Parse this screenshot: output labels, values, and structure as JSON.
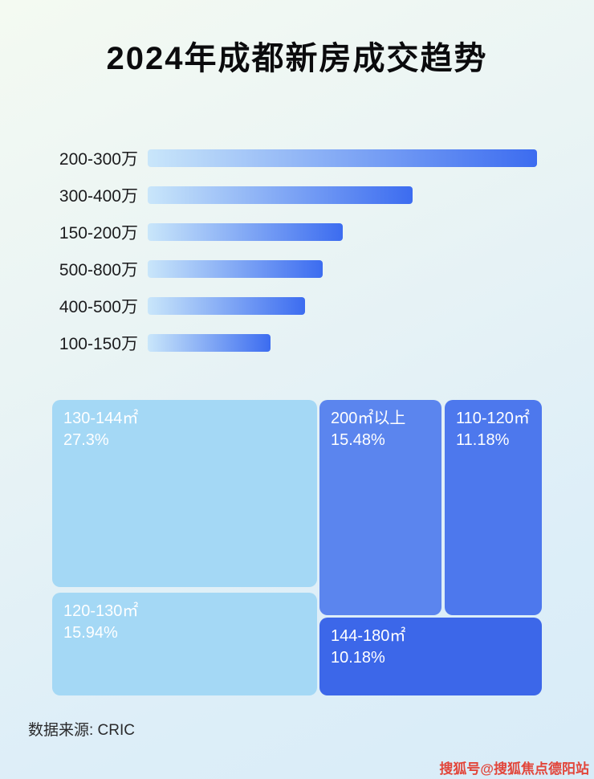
{
  "title": "2024年成都新房成交趋势",
  "source": "数据来源: CRIC",
  "watermark": "搜狐号@搜狐焦点德阳站",
  "colors": {
    "bar_gradient_start": "#c9e6fa",
    "bar_gradient_end": "#3c6cf0",
    "title_text": "#0b0b0d",
    "watermark_red": "#e2453a"
  },
  "chart_data": [
    {
      "type": "bar",
      "orientation": "horizontal",
      "title": "2024年成都新房成交趋势",
      "categories": [
        "200-300万",
        "300-400万",
        "150-200万",
        "500-800万",
        "400-500万",
        "100-150万"
      ],
      "values": [
        100,
        68,
        50,
        45,
        40.5,
        31.5
      ],
      "values_note": "relative bar lengths as % of longest bar; no numeric labels shown in image",
      "xlabel": "",
      "ylabel": "",
      "grid": false,
      "legend": false
    },
    {
      "type": "treemap",
      "items": [
        {
          "label": "130-144㎡",
          "value": 27.3,
          "display": "27.3%",
          "color": "#a4d8f5"
        },
        {
          "label": "120-130㎡",
          "value": 15.94,
          "display": "15.94%",
          "color": "#a4d8f5"
        },
        {
          "label": "200㎡以上",
          "value": 15.48,
          "display": "15.48%",
          "color": "#5b85ee"
        },
        {
          "label": "110-120㎡",
          "value": 11.18,
          "display": "11.18%",
          "color": "#4d78ed"
        },
        {
          "label": "144-180㎡",
          "value": 10.18,
          "display": "10.18%",
          "color": "#3c67e9"
        }
      ]
    }
  ]
}
